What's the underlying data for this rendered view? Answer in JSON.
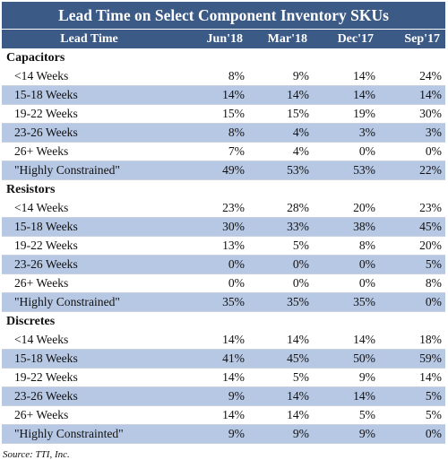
{
  "chart_data": {
    "type": "table",
    "title": "Lead Time on Select Component Inventory SKUs",
    "columns": [
      "Lead Time",
      "Jun'18",
      "Mar'18",
      "Dec'17",
      "Sep'17"
    ],
    "sections": [
      {
        "name": "Capacitors",
        "rows": [
          {
            "label": "<14 Weeks",
            "values": [
              "8%",
              "9%",
              "14%",
              "24%"
            ]
          },
          {
            "label": "15-18 Weeks",
            "values": [
              "14%",
              "14%",
              "14%",
              "14%"
            ]
          },
          {
            "label": "19-22 Weeks",
            "values": [
              "15%",
              "15%",
              "19%",
              "30%"
            ]
          },
          {
            "label": "23-26 Weeks",
            "values": [
              "8%",
              "4%",
              "3%",
              "3%"
            ]
          },
          {
            "label": "26+ Weeks",
            "values": [
              "7%",
              "4%",
              "0%",
              "0%"
            ]
          },
          {
            "label": "\"Highly Constrained\"",
            "values": [
              "49%",
              "53%",
              "53%",
              "22%"
            ]
          }
        ]
      },
      {
        "name": "Resistors",
        "rows": [
          {
            "label": "<14 Weeks",
            "values": [
              "23%",
              "28%",
              "20%",
              "23%"
            ]
          },
          {
            "label": "15-18 Weeks",
            "values": [
              "30%",
              "33%",
              "38%",
              "45%"
            ]
          },
          {
            "label": "19-22 Weeks",
            "values": [
              "13%",
              "5%",
              "8%",
              "20%"
            ]
          },
          {
            "label": "23-26 Weeks",
            "values": [
              "0%",
              "0%",
              "0%",
              "5%"
            ]
          },
          {
            "label": "26+ Weeks",
            "values": [
              "0%",
              "0%",
              "0%",
              "8%"
            ]
          },
          {
            "label": "\"Highly Constrained\"",
            "values": [
              "35%",
              "35%",
              "35%",
              "0%"
            ]
          }
        ]
      },
      {
        "name": "Discretes",
        "rows": [
          {
            "label": "<14 Weeks",
            "values": [
              "14%",
              "14%",
              "14%",
              "18%"
            ]
          },
          {
            "label": "15-18 Weeks",
            "values": [
              "41%",
              "45%",
              "50%",
              "59%"
            ]
          },
          {
            "label": "19-22 Weeks",
            "values": [
              "14%",
              "5%",
              "9%",
              "14%"
            ]
          },
          {
            "label": "23-26 Weeks",
            "values": [
              "9%",
              "14%",
              "14%",
              "5%"
            ]
          },
          {
            "label": "26+ Weeks",
            "values": [
              "14%",
              "14%",
              "5%",
              "5%"
            ]
          },
          {
            "label": "\"Highly Constrainted\"",
            "values": [
              "9%",
              "9%",
              "9%",
              "0%"
            ]
          }
        ]
      }
    ],
    "source": "Source: TTI, Inc.",
    "colors": {
      "header": "#3b5a86",
      "band": "#b7c8e4"
    }
  }
}
